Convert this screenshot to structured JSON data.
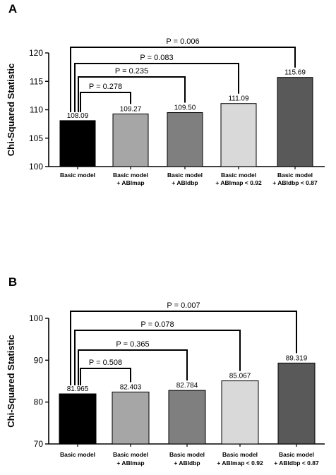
{
  "chart_data": [
    {
      "type": "bar",
      "panel_label": "A",
      "title": "",
      "xlabel": "",
      "ylabel": "Chi-Squared Statistic",
      "ylim": [
        100,
        120
      ],
      "yticks": [
        "100",
        "105",
        "110",
        "115",
        "120"
      ],
      "categories": [
        [
          "Basic model"
        ],
        [
          "Basic model",
          "+ ABImap"
        ],
        [
          "Basic model",
          "+ ABIdbp"
        ],
        [
          "Basic model",
          "+ ABImap < 0.92"
        ],
        [
          "Basic model",
          "+ ABIdbp < 0.87"
        ]
      ],
      "values": [
        108.09,
        109.27,
        109.5,
        111.09,
        115.69
      ],
      "value_labels": [
        "108.09",
        "109.27",
        "109.50",
        "111.09",
        "115.69"
      ],
      "colors": [
        "#000000",
        "#a6a6a6",
        "#7f7f7f",
        "#d9d9d9",
        "#595959"
      ],
      "comparisons": [
        {
          "from": 0,
          "to": 1,
          "label": "P = 0.278"
        },
        {
          "from": 0,
          "to": 2,
          "label": "P = 0.235"
        },
        {
          "from": 0,
          "to": 3,
          "label": "P = 0.083"
        },
        {
          "from": 0,
          "to": 4,
          "label": "P = 0.006"
        }
      ]
    },
    {
      "type": "bar",
      "panel_label": "B",
      "title": "",
      "xlabel": "",
      "ylabel": "Chi-Squared Statistic",
      "ylim": [
        70,
        100
      ],
      "yticks": [
        "70",
        "80",
        "90",
        "100"
      ],
      "categories": [
        [
          "Basic model"
        ],
        [
          "Basic model",
          "+ ABImap"
        ],
        [
          "Basic model",
          "+ ABIdbp"
        ],
        [
          "Basic model",
          "+ ABImap < 0.92"
        ],
        [
          "Basic model",
          "+ ABIdbp < 0.87"
        ]
      ],
      "values": [
        81.965,
        82.403,
        82.784,
        85.067,
        89.319
      ],
      "value_labels": [
        "81.965",
        "82.403",
        "82.784",
        "85.067",
        "89.319"
      ],
      "colors": [
        "#000000",
        "#a6a6a6",
        "#7f7f7f",
        "#d9d9d9",
        "#595959"
      ],
      "comparisons": [
        {
          "from": 0,
          "to": 1,
          "label": "P = 0.508"
        },
        {
          "from": 0,
          "to": 2,
          "label": "P = 0.365"
        },
        {
          "from": 0,
          "to": 3,
          "label": "P = 0.078"
        },
        {
          "from": 0,
          "to": 4,
          "label": "P = 0.007"
        }
      ]
    }
  ]
}
